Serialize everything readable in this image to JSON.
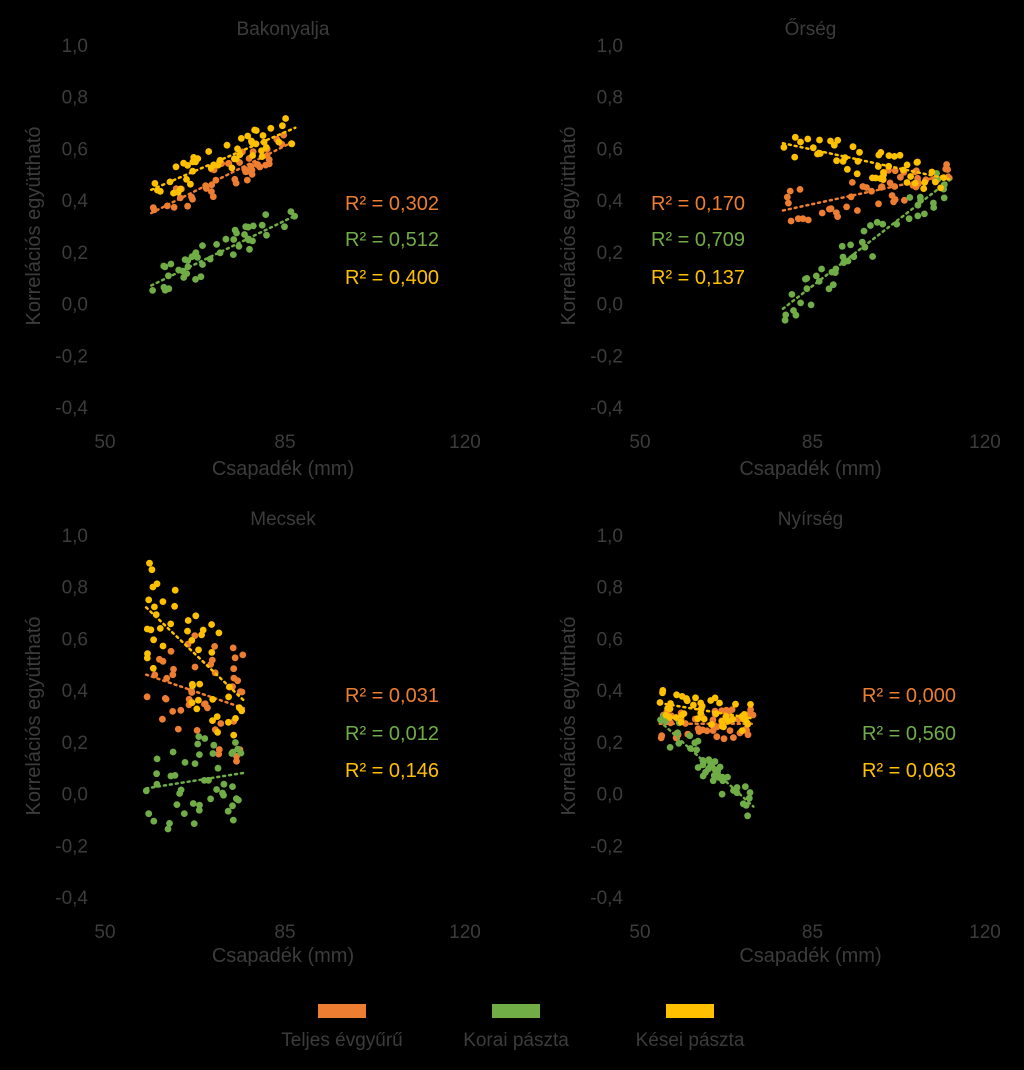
{
  "colors": {
    "background": "#000000",
    "text": "#3c3c3c",
    "teljes": "#ED7D31",
    "korai": "#70AD47",
    "kesei": "#FFC000"
  },
  "chart_data": [
    {
      "type": "scatter",
      "title": "Bakonyalja",
      "xlabel": "Csapadék (mm)",
      "ylabel": "Korrelációs együttható",
      "xlim": [
        50,
        120
      ],
      "ylim": [
        -0.4,
        1.0
      ],
      "xticks": [
        "50",
        "85",
        "120"
      ],
      "yticks": [
        "-0,4",
        "-0,2",
        "0,0",
        "0,2",
        "0,4",
        "0,6",
        "0,8",
        "1,0"
      ],
      "x_range": [
        59,
        87
      ],
      "series": [
        {
          "key": "teljes",
          "trend": [
            0.35,
            0.63
          ],
          "r2": "R² = 0,302",
          "spread": 0.06
        },
        {
          "key": "korai",
          "trend": [
            0.07,
            0.34
          ],
          "r2": "R² = 0,512",
          "spread": 0.06
        },
        {
          "key": "kesei",
          "trend": [
            0.44,
            0.68
          ],
          "r2": "R² = 0,400",
          "spread": 0.06
        }
      ]
    },
    {
      "type": "scatter",
      "title": "Őrség",
      "xlabel": "Csapadék (mm)",
      "ylabel": "Korrelációs együttható",
      "xlim": [
        50,
        120
      ],
      "ylim": [
        -0.4,
        1.0
      ],
      "xticks": [
        "50",
        "85",
        "120"
      ],
      "yticks": [
        "-0,4",
        "-0,2",
        "0,0",
        "0,2",
        "0,4",
        "0,6",
        "0,8",
        "1,0"
      ],
      "x_range": [
        79,
        113
      ],
      "series": [
        {
          "key": "teljes",
          "trend": [
            0.36,
            0.5
          ],
          "r2": "R² = 0,170",
          "spread": 0.07
        },
        {
          "key": "korai",
          "trend": [
            -0.02,
            0.48
          ],
          "r2": "R² = 0,709",
          "spread": 0.07
        },
        {
          "key": "kesei",
          "trend": [
            0.62,
            0.48
          ],
          "r2": "R² = 0,137",
          "spread": 0.06
        }
      ]
    },
    {
      "type": "scatter",
      "title": "Mecsek",
      "xlabel": "Csapadék (mm)",
      "ylabel": "Korrelációs együttható",
      "xlim": [
        50,
        120
      ],
      "ylim": [
        -0.4,
        1.0
      ],
      "xticks": [
        "50",
        "85",
        "120"
      ],
      "yticks": [
        "-0,4",
        "-0,2",
        "0,0",
        "0,2",
        "0,4",
        "0,6",
        "0,8",
        "1,0"
      ],
      "x_range": [
        58,
        77
      ],
      "series": [
        {
          "key": "teljes",
          "trend": [
            0.46,
            0.33
          ],
          "r2": "R² = 0,031",
          "spread": 0.22
        },
        {
          "key": "korai",
          "trend": [
            0.02,
            0.08
          ],
          "r2": "R² = 0,012",
          "spread": 0.18
        },
        {
          "key": "kesei",
          "trend": [
            0.72,
            0.36
          ],
          "r2": "R² = 0,146",
          "spread": 0.22
        }
      ]
    },
    {
      "type": "scatter",
      "title": "Nyírség",
      "xlabel": "Csapadék (mm)",
      "ylabel": "Korrelációs együttható",
      "xlim": [
        50,
        120
      ],
      "ylim": [
        -0.4,
        1.0
      ],
      "xticks": [
        "50",
        "85",
        "120"
      ],
      "yticks": [
        "-0,4",
        "-0,2",
        "0,0",
        "0,2",
        "0,4",
        "0,6",
        "0,8",
        "1,0"
      ],
      "x_range": [
        54,
        73
      ],
      "series": [
        {
          "key": "teljes",
          "trend": [
            0.27,
            0.27
          ],
          "r2": "R² = 0,000",
          "spread": 0.06
        },
        {
          "key": "korai",
          "trend": [
            0.28,
            -0.05
          ],
          "r2": "R² = 0,560",
          "spread": 0.07
        },
        {
          "key": "kesei",
          "trend": [
            0.35,
            0.29
          ],
          "r2": "R² = 0,063",
          "spread": 0.06
        }
      ]
    }
  ],
  "legend": {
    "items": [
      {
        "key": "teljes",
        "label": "Teljes évgyűrű"
      },
      {
        "key": "korai",
        "label": "Korai pászta"
      },
      {
        "key": "kesei",
        "label": "Kései pászta"
      }
    ]
  }
}
